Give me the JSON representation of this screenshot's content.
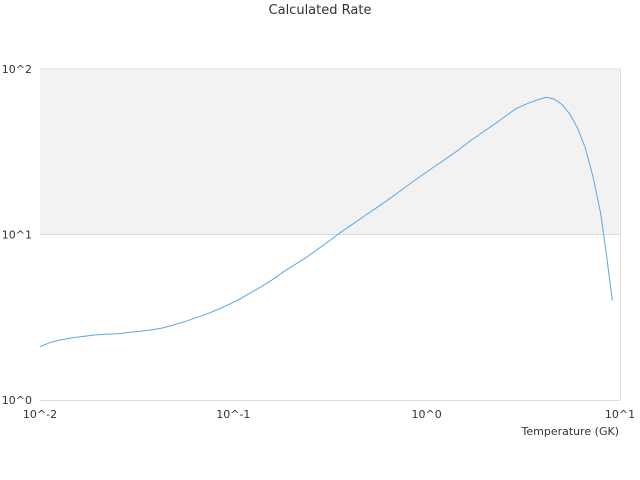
{
  "chart_data": {
    "type": "line",
    "title": "Calculated Rate",
    "xlabel": "Temperature (GK)",
    "ylabel": "",
    "x_scale": "log",
    "y_scale": "log",
    "xlim": [
      0.01,
      10
    ],
    "ylim": [
      1,
      100
    ],
    "x_tick_labels": [
      "10^-2",
      "10^-1",
      "10^0",
      "10^1"
    ],
    "y_tick_labels": [
      "10^0",
      "10^1",
      "10^2"
    ],
    "grid": false,
    "legend": "none",
    "colors": {
      "line": "#5aa7e6",
      "band": "#f2f2f2",
      "frame": "#dddddd"
    },
    "series": [
      {
        "x": [
          0.01,
          0.0112,
          0.0126,
          0.0145,
          0.0166,
          0.0191,
          0.0221,
          0.0251,
          0.0288,
          0.0331,
          0.0372,
          0.0427,
          0.0479,
          0.055,
          0.0631,
          0.0724,
          0.0832,
          0.0955,
          0.107,
          0.123,
          0.141,
          0.162,
          0.182,
          0.209,
          0.24,
          0.275,
          0.316,
          0.363,
          0.417,
          0.479,
          0.55,
          0.631,
          0.724,
          0.832,
          0.955,
          1.1,
          1.26,
          1.45,
          1.66,
          1.91,
          2.19,
          2.51,
          2.88,
          3.31,
          3.8,
          4.17,
          4.57,
          5.01,
          5.5,
          6.03,
          6.61,
          7.24,
          7.94,
          8.51,
          9.12
        ],
        "y": [
          2.1,
          2.22,
          2.3,
          2.37,
          2.42,
          2.47,
          2.5,
          2.51,
          2.56,
          2.6,
          2.65,
          2.72,
          2.82,
          2.95,
          3.12,
          3.3,
          3.52,
          3.79,
          4.05,
          4.45,
          4.87,
          5.4,
          5.96,
          6.6,
          7.3,
          8.2,
          9.2,
          10.4,
          11.6,
          13.0,
          14.5,
          16.2,
          18.2,
          20.5,
          23.0,
          25.8,
          28.7,
          32.2,
          36.4,
          40.8,
          45.5,
          51.0,
          57.5,
          61.7,
          65.5,
          67.5,
          65.8,
          61.0,
          53.5,
          44.0,
          33.5,
          22.5,
          13.5,
          7.5,
          4.0
        ]
      }
    ]
  }
}
